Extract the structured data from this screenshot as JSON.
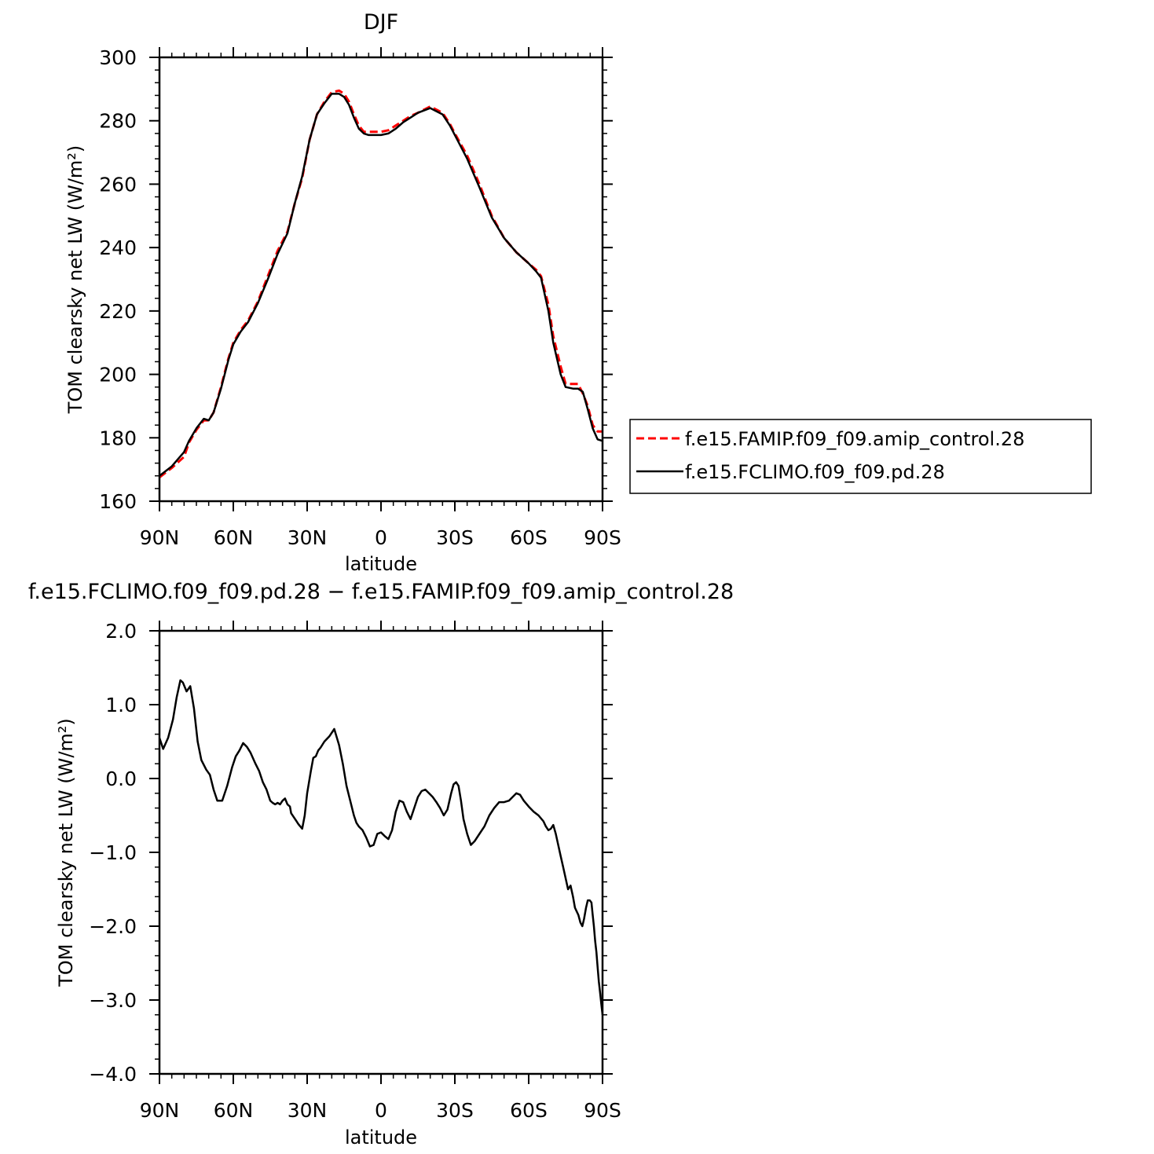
{
  "chart_data": [
    {
      "type": "line",
      "title": "DJF",
      "xlabel": "latitude",
      "ylabel": "TOM clearsky net LW (W/m²)",
      "xlim": [
        -90,
        90
      ],
      "ylim": [
        160,
        300
      ],
      "x_ticks": [
        {
          "value": -90,
          "label": "90N"
        },
        {
          "value": -60,
          "label": "60N"
        },
        {
          "value": -30,
          "label": "30N"
        },
        {
          "value": 0,
          "label": "0"
        },
        {
          "value": 30,
          "label": "30S"
        },
        {
          "value": 60,
          "label": "60S"
        },
        {
          "value": 90,
          "label": "90S"
        }
      ],
      "y_ticks": [
        {
          "value": 160,
          "label": "160"
        },
        {
          "value": 180,
          "label": "180"
        },
        {
          "value": 200,
          "label": "200"
        },
        {
          "value": 220,
          "label": "220"
        },
        {
          "value": 240,
          "label": "240"
        },
        {
          "value": 260,
          "label": "260"
        },
        {
          "value": 280,
          "label": "280"
        },
        {
          "value": 300,
          "label": "300"
        }
      ],
      "legend_position": "right",
      "series": [
        {
          "name": "f.e15.FAMIP.f09_f09.amip_control.28",
          "color": "#ff0000",
          "style": "dashed",
          "x": [
            -90,
            -85,
            -80,
            -78,
            -75,
            -72,
            -70,
            -68,
            -65,
            -62,
            -60,
            -57,
            -54,
            -50,
            -46,
            -42,
            -38,
            -35,
            -32,
            -29,
            -26,
            -23,
            -20,
            -17,
            -15,
            -13,
            -11,
            -9,
            -7,
            -5,
            -3,
            0,
            3,
            6,
            9,
            12,
            15,
            20,
            25,
            28,
            30,
            35,
            40,
            45,
            50,
            55,
            60,
            63,
            65,
            68,
            70,
            73,
            75,
            78,
            80,
            82,
            84,
            86,
            88,
            90
          ],
          "y": [
            167.5,
            170.5,
            174,
            178.5,
            182.5,
            185.5,
            185.5,
            188,
            196,
            205,
            210,
            214,
            217,
            223,
            231,
            239,
            245,
            254,
            262,
            274,
            282,
            286,
            289,
            289.5,
            288.5,
            286,
            282,
            278.5,
            276.5,
            276.5,
            276.5,
            276.5,
            277,
            278.5,
            280,
            281.5,
            282.5,
            284.5,
            282.5,
            279,
            276,
            269,
            260,
            250,
            243,
            238.5,
            235,
            233,
            231,
            222,
            212,
            202.5,
            197,
            197,
            197,
            194,
            190,
            184,
            182,
            182
          ]
        },
        {
          "name": "f.e15.FCLIMO.f09_f09.pd.28",
          "color": "#000000",
          "style": "solid",
          "x": [
            -90,
            -85,
            -80,
            -78,
            -75,
            -72,
            -70,
            -68,
            -65,
            -62,
            -60,
            -57,
            -54,
            -50,
            -46,
            -42,
            -38,
            -35,
            -32,
            -29,
            -26,
            -23,
            -20,
            -17,
            -15,
            -13,
            -11,
            -9,
            -7,
            -5,
            -3,
            0,
            3,
            6,
            9,
            12,
            15,
            20,
            25,
            28,
            30,
            35,
            40,
            45,
            50,
            55,
            60,
            63,
            65,
            68,
            70,
            73,
            75,
            78,
            80,
            82,
            84,
            86,
            88,
            90
          ],
          "y": [
            168,
            171,
            175.5,
            179,
            183,
            186,
            185.5,
            188,
            195.5,
            204.5,
            209.5,
            213.5,
            216.5,
            222.5,
            230,
            238,
            244.5,
            254,
            262.5,
            274,
            282,
            285.5,
            288.5,
            288.5,
            287.5,
            285,
            281,
            277.5,
            276,
            275.5,
            275.5,
            275.5,
            276,
            277.5,
            279.5,
            281,
            282.5,
            284,
            282,
            278.5,
            275.5,
            268,
            259,
            249.5,
            243,
            238.5,
            235,
            232.5,
            230.5,
            220,
            210,
            200,
            196,
            195.5,
            195.5,
            194.5,
            189,
            183,
            179.5,
            179
          ]
        }
      ]
    },
    {
      "type": "line",
      "title": "f.e15.FCLIMO.f09_f09.pd.28 − f.e15.FAMIP.f09_f09.amip_control.28",
      "xlabel": "latitude",
      "ylabel": "TOM clearsky net LW (W/m²)",
      "xlim": [
        -90,
        90
      ],
      "ylim": [
        -4.0,
        2.0
      ],
      "x_ticks": [
        {
          "value": -90,
          "label": "90N"
        },
        {
          "value": -60,
          "label": "60N"
        },
        {
          "value": -30,
          "label": "30N"
        },
        {
          "value": 0,
          "label": "0"
        },
        {
          "value": 30,
          "label": "30S"
        },
        {
          "value": 60,
          "label": "60S"
        },
        {
          "value": 90,
          "label": "90S"
        }
      ],
      "y_ticks": [
        {
          "value": -4.0,
          "label": "−4.0"
        },
        {
          "value": -3.0,
          "label": "−3.0"
        },
        {
          "value": -2.0,
          "label": "−2.0"
        },
        {
          "value": -1.0,
          "label": "−1.0"
        },
        {
          "value": 0.0,
          "label": "0.0"
        },
        {
          "value": 1.0,
          "label": "1.0"
        },
        {
          "value": 2.0,
          "label": "2.0"
        }
      ],
      "series": [
        {
          "color": "#000000",
          "style": "solid",
          "x": [
            -90,
            -88.5,
            -86.5,
            -84.5,
            -83,
            -81.5,
            -80.5,
            -79,
            -77.5,
            -76,
            -74.5,
            -73,
            -71,
            -69.5,
            -68,
            -66.5,
            -64.5,
            -62.5,
            -60.5,
            -59,
            -57.5,
            -56,
            -54.5,
            -53,
            -51,
            -49.5,
            -48,
            -46.5,
            -45,
            -44,
            -43,
            -42,
            -41,
            -40,
            -39,
            -38,
            -37,
            -36.5,
            -35.5,
            -34.5,
            -33.5,
            -32,
            -31,
            -30,
            -28.5,
            -27.5,
            -26.5,
            -25.5,
            -24.5,
            -23,
            -21,
            -19,
            -17,
            -15.5,
            -14,
            -12.5,
            -11,
            -10,
            -9,
            -7.5,
            -6,
            -4.5,
            -3,
            -1.5,
            0,
            1.5,
            3,
            4.5,
            6,
            7.5,
            9,
            10.5,
            12,
            13.5,
            15,
            16.5,
            18,
            19.5,
            21,
            22.5,
            24,
            25.5,
            27,
            28.5,
            29.5,
            30.5,
            31.5,
            32.5,
            33.5,
            35,
            36.5,
            38,
            40,
            42,
            44,
            46,
            48,
            50,
            52,
            53.5,
            55,
            56.5,
            58,
            60,
            62,
            64,
            66,
            67,
            68,
            69,
            70,
            71,
            72,
            73,
            74,
            75,
            76,
            77,
            78,
            78.8,
            79.5,
            80.2,
            81,
            81.8,
            82.5,
            83.3,
            84,
            84.8,
            85.5,
            86,
            86.5,
            87,
            87.5,
            88,
            88.5,
            89,
            89.5,
            90
          ],
          "y": [
            0.55,
            0.4,
            0.55,
            0.8,
            1.1,
            1.33,
            1.3,
            1.18,
            1.25,
            0.95,
            0.5,
            0.25,
            0.12,
            0.05,
            -0.15,
            -0.3,
            -0.3,
            -0.1,
            0.15,
            0.3,
            0.38,
            0.48,
            0.43,
            0.35,
            0.2,
            0.1,
            -0.05,
            -0.15,
            -0.3,
            -0.33,
            -0.35,
            -0.33,
            -0.35,
            -0.3,
            -0.27,
            -0.35,
            -0.38,
            -0.47,
            -0.52,
            -0.57,
            -0.62,
            -0.68,
            -0.5,
            -0.2,
            0.1,
            0.28,
            0.3,
            0.38,
            0.42,
            0.5,
            0.57,
            0.67,
            0.45,
            0.2,
            -0.1,
            -0.3,
            -0.5,
            -0.6,
            -0.65,
            -0.7,
            -0.8,
            -0.92,
            -0.9,
            -0.75,
            -0.73,
            -0.78,
            -0.82,
            -0.7,
            -0.45,
            -0.3,
            -0.32,
            -0.45,
            -0.55,
            -0.4,
            -0.25,
            -0.17,
            -0.15,
            -0.2,
            -0.25,
            -0.32,
            -0.4,
            -0.5,
            -0.42,
            -0.2,
            -0.08,
            -0.05,
            -0.1,
            -0.3,
            -0.55,
            -0.75,
            -0.9,
            -0.85,
            -0.75,
            -0.65,
            -0.5,
            -0.4,
            -0.32,
            -0.32,
            -0.3,
            -0.25,
            -0.2,
            -0.22,
            -0.3,
            -0.38,
            -0.45,
            -0.5,
            -0.58,
            -0.65,
            -0.7,
            -0.68,
            -0.63,
            -0.75,
            -0.9,
            -1.05,
            -1.2,
            -1.35,
            -1.5,
            -1.45,
            -1.6,
            -1.75,
            -1.8,
            -1.85,
            -1.95,
            -2.0,
            -1.9,
            -1.75,
            -1.65,
            -1.65,
            -1.68,
            -1.85,
            -2.0,
            -2.2,
            -2.35,
            -2.55,
            -2.75,
            -2.9,
            -3.05,
            -3.2
          ]
        }
      ]
    }
  ]
}
